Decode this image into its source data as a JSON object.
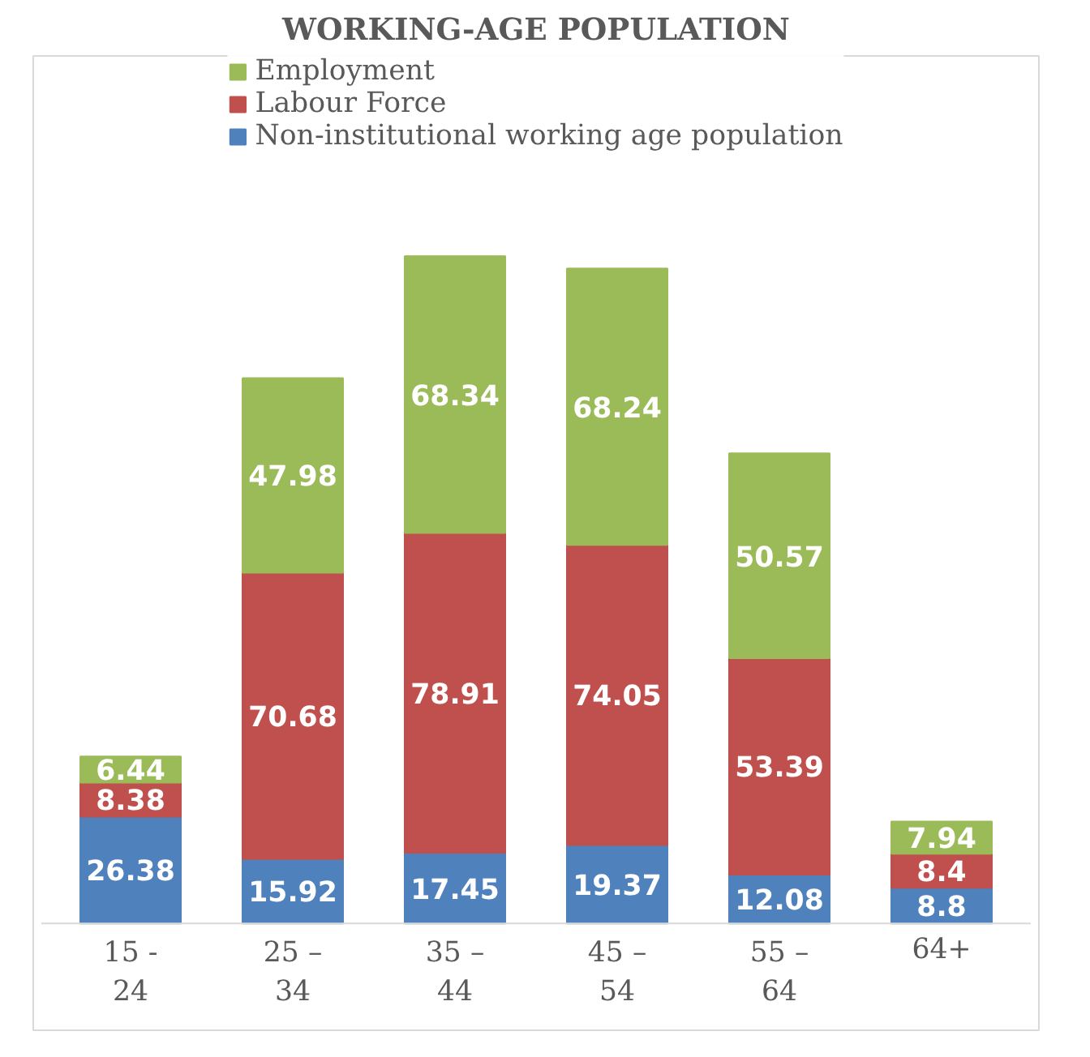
{
  "chart_data": {
    "type": "bar",
    "title": "WORKING-AGE POPULATION",
    "stacked": true,
    "data_labels": true,
    "legend": "top",
    "grid": false,
    "categories": [
      "15 - 24",
      "25 – 34",
      "35 – 44",
      "45 – 54",
      "55 – 64",
      "64+"
    ],
    "series": [
      {
        "name": "Non-institutional working age population",
        "color": "#4f81bd",
        "values": [
          26.38,
          15.92,
          17.45,
          19.37,
          12.08,
          8.8
        ]
      },
      {
        "name": "Labour Force",
        "color": "#c0504d",
        "values": [
          8.38,
          70.68,
          78.91,
          74.05,
          53.39,
          8.4
        ]
      },
      {
        "name": "Employment",
        "color": "#9bbb59",
        "values": [
          6.44,
          47.98,
          68.34,
          68.24,
          50.57,
          7.94
        ]
      }
    ]
  }
}
